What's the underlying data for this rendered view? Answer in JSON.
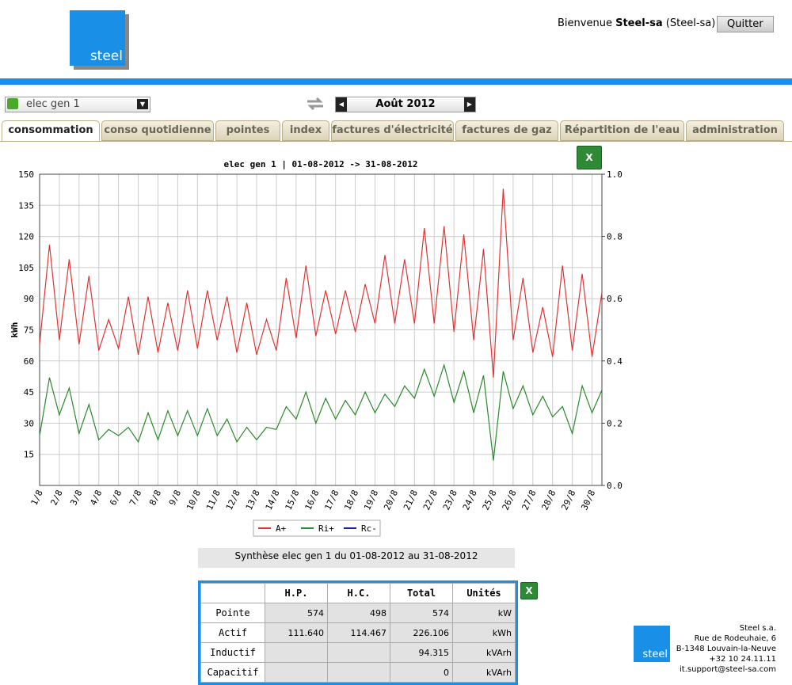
{
  "header": {
    "logo_text": "steel",
    "greeting": "Bienvenue",
    "user": "Steel-sa",
    "account": "(Steel-sa)",
    "logout": "Quitter"
  },
  "toolbar": {
    "meter": "elec gen 1",
    "period": "Août 2012"
  },
  "tabs": [
    "consommation",
    "conso quotidienne",
    "pointes",
    "index",
    "factures d'électricité",
    "factures de gaz",
    "Répartition de l'eau",
    "administration"
  ],
  "chart_data": {
    "type": "line",
    "title": "elec gen 1 | 01-08-2012 -> 31-08-2012",
    "y_label": "kWh",
    "categories": [
      "1/8",
      null,
      "2/8",
      null,
      "3/8",
      null,
      "4/8",
      null,
      "6/8",
      null,
      "7/8",
      null,
      "8/8",
      null,
      "9/8",
      null,
      "10/8",
      null,
      "11/8",
      null,
      "12/8",
      null,
      "13/8",
      null,
      "14/8",
      null,
      "15/8",
      null,
      "16/8",
      null,
      "17/8",
      null,
      "18/8",
      null,
      "19/8",
      null,
      "20/8",
      null,
      "21/8",
      null,
      "22/8",
      null,
      "23/8",
      null,
      "24/8",
      null,
      "25/8",
      null,
      "26/8",
      null,
      "27/8",
      null,
      "28/8",
      null,
      "29/8",
      null,
      "30/8",
      null
    ],
    "series": [
      {
        "name": "A+",
        "color": "#e03434",
        "values": [
          68,
          116,
          70,
          109,
          68,
          101,
          65,
          80,
          66,
          91,
          63,
          91,
          64,
          88,
          65,
          94,
          66,
          94,
          70,
          91,
          64,
          88,
          63,
          80,
          65,
          100,
          71,
          106,
          72,
          94,
          73,
          94,
          74,
          97,
          78,
          111,
          78,
          109,
          78,
          124,
          78,
          125,
          74,
          121,
          70,
          114,
          52,
          143,
          70,
          100,
          64,
          86,
          62,
          106,
          65,
          102,
          62,
          93
        ]
      },
      {
        "name": "Ri+",
        "color": "#2a8a2a",
        "values": [
          24,
          52,
          34,
          47,
          25,
          39,
          22,
          27,
          24,
          28,
          21,
          35,
          22,
          36,
          24,
          36,
          24,
          37,
          24,
          32,
          21,
          28,
          22,
          28,
          27,
          38,
          32,
          45,
          30,
          42,
          32,
          41,
          34,
          45,
          35,
          44,
          38,
          48,
          42,
          56,
          43,
          58,
          40,
          55,
          35,
          53,
          12,
          55,
          37,
          48,
          34,
          43,
          33,
          38,
          25,
          48,
          35,
          46
        ]
      },
      {
        "name": "Rc-",
        "color": "#1a1aa0",
        "axis": "y2",
        "values": [
          null,
          null,
          null,
          null,
          null,
          null,
          null,
          null,
          null,
          null,
          null,
          null,
          null,
          null,
          null,
          null,
          null,
          null,
          null,
          null,
          null,
          null,
          null,
          null,
          null,
          null,
          null,
          null,
          null,
          null,
          null,
          null,
          null,
          null,
          null,
          null,
          null,
          null,
          null,
          null,
          null,
          null,
          null,
          null,
          null,
          null,
          null,
          null,
          null,
          null,
          null,
          null,
          null,
          null,
          null,
          null,
          null,
          null
        ]
      }
    ],
    "ylim": [
      0,
      150
    ],
    "yticks": [
      15,
      30,
      45,
      60,
      75,
      90,
      105,
      120,
      135,
      150
    ],
    "y2lim": [
      0,
      1
    ],
    "y2ticks": [
      {
        "value": 0,
        "label": "0.0"
      },
      {
        "value": 0.2,
        "label": "0.2"
      },
      {
        "value": 0.4,
        "label": "0.4"
      },
      {
        "value": 0.6,
        "label": "0.6"
      },
      {
        "value": 0.8,
        "label": "0.8"
      },
      {
        "value": 1,
        "label": "1.0"
      }
    ],
    "grid": true
  },
  "summary": {
    "title": "Synthèse elec gen 1 du 01-08-2012 au 31-08-2012"
  },
  "table": {
    "columns": [
      "H.P.",
      "H.C.",
      "Total",
      "Unités"
    ],
    "rows": [
      [
        "Pointe",
        "574",
        "498",
        "574",
        "kW"
      ],
      [
        "Actif",
        "111.640",
        "114.467",
        "226.106",
        "kWh"
      ],
      [
        "Inductif",
        null,
        null,
        "94.315",
        "kVArh"
      ],
      [
        "Capacitif",
        null,
        null,
        "0",
        "kVArh"
      ]
    ]
  },
  "footer": {
    "logo_text": "steel",
    "lines": [
      "Steel s.a.",
      "Rue de Rodeuhaie, 6",
      "B-1348 Louvain-la-Neuve",
      "+32 10 24.11.11",
      "it.support@steel-sa.com"
    ]
  }
}
